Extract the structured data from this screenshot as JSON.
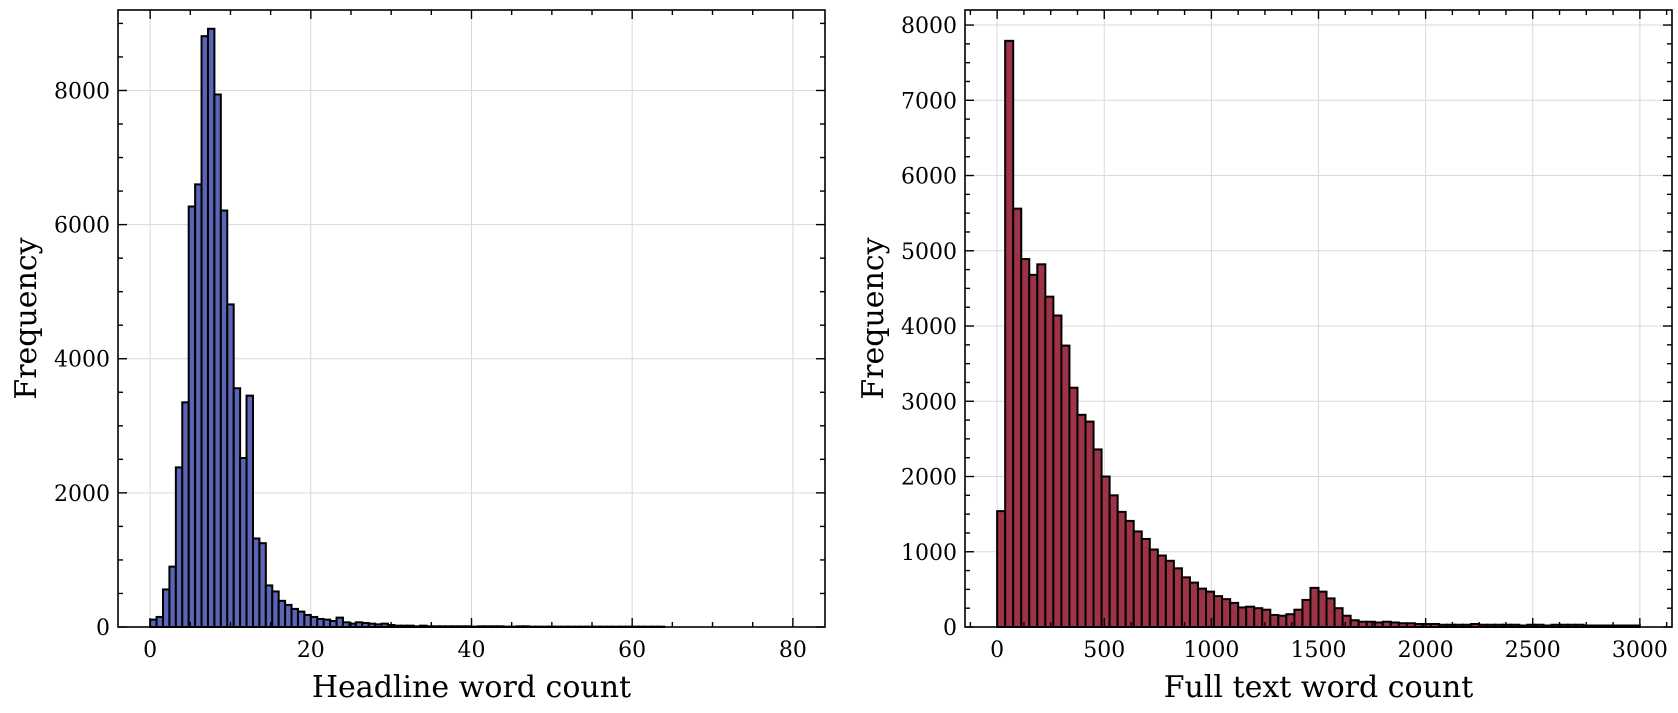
{
  "chart_data": [
    {
      "type": "bar",
      "xlabel": "Headline word count",
      "ylabel": "Frequency",
      "xlim": [
        -4,
        84
      ],
      "ylim": [
        0,
        9200
      ],
      "xticks": [
        0,
        20,
        40,
        60,
        80
      ],
      "yticks": [
        0,
        2000,
        4000,
        6000,
        8000
      ],
      "grid": true,
      "bin_start": 0,
      "bin_width": 0.8,
      "color": "#5b65b5",
      "edge_color": "#000000",
      "values": [
        110,
        150,
        560,
        900,
        2380,
        3350,
        6270,
        6600,
        8810,
        8920,
        7940,
        6210,
        4810,
        3560,
        2520,
        3450,
        1320,
        1250,
        620,
        530,
        390,
        330,
        270,
        230,
        180,
        150,
        120,
        110,
        90,
        140,
        70,
        50,
        70,
        60,
        50,
        40,
        50,
        30,
        20,
        20,
        20,
        10,
        20,
        10,
        10,
        10,
        10,
        10,
        10,
        10,
        5,
        10,
        10,
        10,
        10,
        5,
        5,
        10,
        10,
        5,
        5,
        5,
        5,
        5,
        5,
        5,
        5,
        5,
        5,
        5,
        5,
        5,
        5,
        5,
        5,
        5,
        5,
        5,
        5,
        5
      ]
    },
    {
      "type": "bar",
      "xlabel": "Full text word count",
      "ylabel": "Frequency",
      "xlim": [
        -150,
        3150
      ],
      "ylim": [
        0,
        8200
      ],
      "xticks": [
        0,
        500,
        1000,
        1500,
        2000,
        2500,
        3000
      ],
      "yticks": [
        0,
        1000,
        2000,
        3000,
        4000,
        5000,
        6000,
        7000,
        8000
      ],
      "grid": true,
      "bin_start": 0,
      "bin_width": 37.5,
      "color": "#9d3347",
      "edge_color": "#000000",
      "values": [
        1540,
        7790,
        5560,
        4890,
        4680,
        4820,
        4390,
        4140,
        3740,
        3180,
        2820,
        2730,
        2360,
        2000,
        1750,
        1530,
        1410,
        1270,
        1170,
        1030,
        950,
        880,
        780,
        660,
        590,
        510,
        470,
        410,
        370,
        320,
        260,
        270,
        250,
        230,
        160,
        150,
        170,
        230,
        360,
        520,
        470,
        380,
        250,
        150,
        90,
        70,
        70,
        60,
        70,
        60,
        50,
        50,
        40,
        40,
        40,
        30,
        30,
        30,
        30,
        40,
        30,
        30,
        30,
        30,
        30,
        20,
        30,
        30,
        20,
        30,
        30,
        30,
        30,
        20,
        20,
        20,
        20,
        20,
        20,
        20
      ]
    }
  ]
}
